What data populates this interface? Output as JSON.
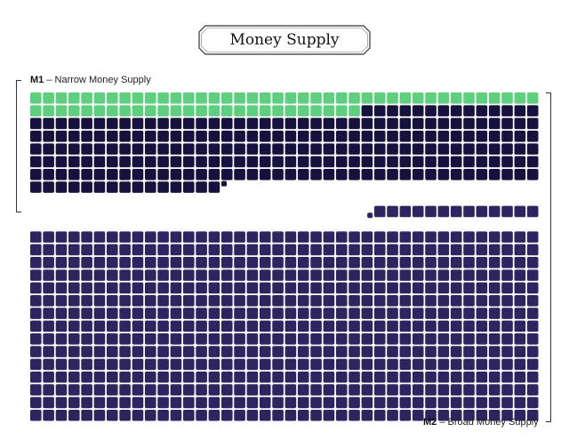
{
  "chart_data": {
    "type": "waffle",
    "title": "Money Supply",
    "grid": {
      "columns": 40
    },
    "groups": [
      {
        "name": "M1",
        "description": "Narrow Money Supply",
        "segments": [
          {
            "key": "m1_light",
            "units": 66,
            "color": "#5ecf7e"
          },
          {
            "key": "m1_dark",
            "units": 229,
            "color": "#16123d"
          }
        ]
      },
      {
        "name": "M2",
        "description": "Broad Money Supply",
        "segments": [
          {
            "key": "m2",
            "units": 613,
            "color": "#2e2460"
          }
        ]
      }
    ],
    "partial_units": [
      {
        "after_segment": "m1_dark",
        "fraction": 0.4
      },
      {
        "before_segment": "m2",
        "fraction": 0.4
      }
    ]
  },
  "labels": {
    "m1_bold": "M1",
    "m1_rest": " – Narrow Money Supply",
    "m2_bold": "M2",
    "m2_rest": " – Broad Money Supply"
  }
}
